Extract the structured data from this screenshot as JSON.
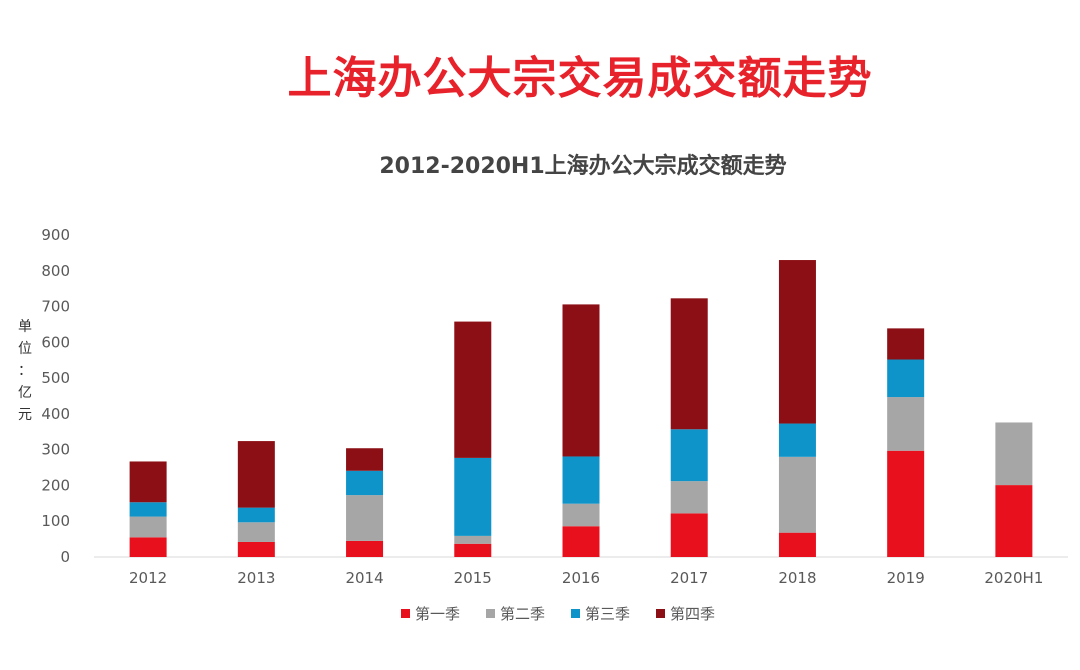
{
  "page": {
    "title": "上海办公大宗交易成交额走势"
  },
  "chart_data": {
    "type": "bar",
    "stacked": true,
    "title": "2012-2020H1上海办公大宗成交额走势",
    "xlabel": "",
    "ylabel": "单位：亿元",
    "ylim": [
      0,
      900
    ],
    "yticks": [
      0,
      100,
      200,
      300,
      400,
      500,
      600,
      700,
      800,
      900
    ],
    "grid": false,
    "legend_position": "bottom",
    "categories": [
      "2012",
      "2013",
      "2014",
      "2015",
      "2016",
      "2017",
      "2018",
      "2019",
      "2020H1"
    ],
    "series": [
      {
        "name": "第一季",
        "color": "#e8101c",
        "values": [
          55,
          42,
          45,
          37,
          86,
          122,
          68,
          297,
          201
        ]
      },
      {
        "name": "第二季",
        "color": "#a6a6a6",
        "values": [
          58,
          55,
          128,
          22,
          63,
          90,
          212,
          150,
          175
        ]
      },
      {
        "name": "第三季",
        "color": "#0e94c9",
        "values": [
          40,
          41,
          68,
          218,
          132,
          145,
          93,
          105,
          0
        ]
      },
      {
        "name": "第四季",
        "color": "#8b0f14",
        "values": [
          114,
          186,
          63,
          381,
          425,
          366,
          457,
          87,
          0
        ]
      }
    ]
  }
}
